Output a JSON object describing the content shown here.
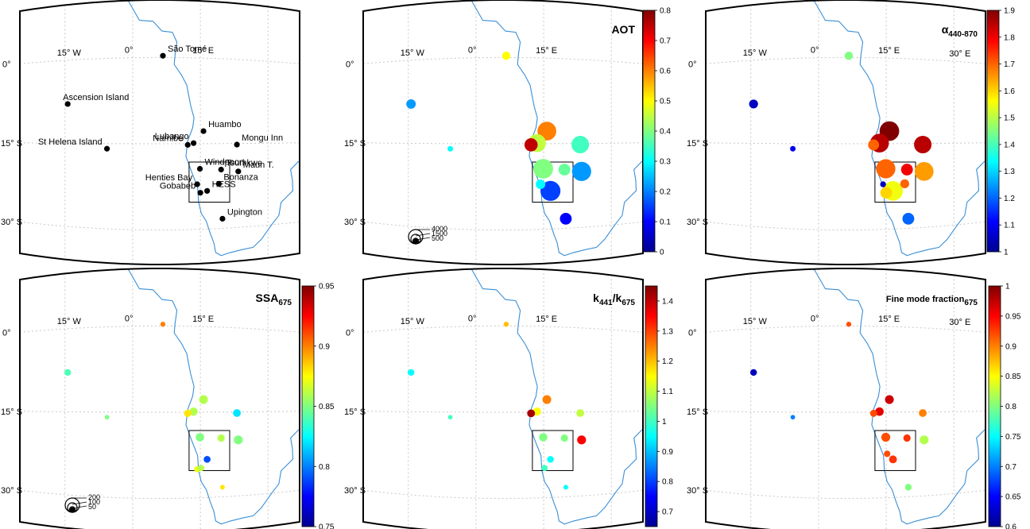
{
  "colors": {
    "coast": "#3a8fd6",
    "grid": "#c8c8c8",
    "frame": "#000000",
    "station": "#000000",
    "jet": [
      "#00008f",
      "#0000ff",
      "#0080ff",
      "#00ffff",
      "#80ff80",
      "#ffff00",
      "#ff8000",
      "#ff0000",
      "#800000"
    ]
  },
  "map_labels": {
    "lon_w15": "15° W",
    "lon_0": "0°",
    "lon_e15": "15° E",
    "lon_e30": "30° E",
    "lat_0": "0°",
    "lat_s15": "15° S",
    "lat_s30": "30° S"
  },
  "stations": [
    {
      "name": "São Tomé",
      "lon": 6.7,
      "lat": 0.3
    },
    {
      "name": "Ascension Island",
      "lon": -14.4,
      "lat": -7.9
    },
    {
      "name": "Huambo",
      "lon": 15.7,
      "lat": -12.8
    },
    {
      "name": "St Helena Island",
      "lon": -5.7,
      "lat": -15.9
    },
    {
      "name": "Lubango",
      "lon": 13.5,
      "lat": -14.9
    },
    {
      "name": "Namibe",
      "lon": 12.2,
      "lat": -15.2
    },
    {
      "name": "Mongu Inn",
      "lon": 23.1,
      "lat": -15.2
    },
    {
      "name": "Windpoort",
      "lon": 14.9,
      "lat": -19.4
    },
    {
      "name": "Tsumkwe",
      "lon": 19.6,
      "lat": -19.6
    },
    {
      "name": "Maun T.",
      "lon": 23.4,
      "lat": -20.0
    },
    {
      "name": "Henties Bay",
      "lon": 14.3,
      "lat": -22.1
    },
    {
      "name": "Bonanza",
      "lon": 19.1,
      "lat": -22.1
    },
    {
      "name": "Gobabeb",
      "lon": 15.0,
      "lat": -23.6
    },
    {
      "name": "HESS",
      "lon": 16.5,
      "lat": -23.3
    },
    {
      "name": "Upington",
      "lon": 19.9,
      "lat": -28.3
    }
  ],
  "size_legends": {
    "aot": [
      "4000",
      "1500",
      "500"
    ],
    "ssa": [
      "200",
      "100",
      "50"
    ]
  },
  "chart_data": [
    {
      "type": "scatter",
      "id": "stations",
      "note_units": "lon/lat degrees",
      "points": []
    },
    {
      "type": "scatter",
      "id": "aot",
      "title": "AOT",
      "colorbar": {
        "min": 0,
        "max": 0.8,
        "ticks": [
          "0",
          "0.1",
          "0.2",
          "0.3",
          "0.4",
          "0.5",
          "0.6",
          "0.7",
          "0.8"
        ]
      },
      "points": [
        {
          "lon": 6.7,
          "lat": 0.3,
          "value": 0.5,
          "n": 150
        },
        {
          "lon": -14.4,
          "lat": -7.9,
          "value": 0.22,
          "n": 250
        },
        {
          "lon": -5.7,
          "lat": -15.9,
          "value": 0.3,
          "n": 20
        },
        {
          "lon": 15.7,
          "lat": -12.8,
          "value": 0.6,
          "n": 1800
        },
        {
          "lon": 12.2,
          "lat": -15.2,
          "value": 0.75,
          "n": 700
        },
        {
          "lon": 13.5,
          "lat": -14.9,
          "value": 0.45,
          "n": 1600
        },
        {
          "lon": 23.1,
          "lat": -15.2,
          "value": 0.35,
          "n": 1500
        },
        {
          "lon": 14.9,
          "lat": -19.4,
          "value": 0.4,
          "n": 2000
        },
        {
          "lon": 19.6,
          "lat": -19.6,
          "value": 0.38,
          "n": 500
        },
        {
          "lon": 23.4,
          "lat": -20.0,
          "value": 0.22,
          "n": 1900
        },
        {
          "lon": 14.3,
          "lat": -22.1,
          "value": 0.3,
          "n": 250
        },
        {
          "lon": 16.5,
          "lat": -23.3,
          "value": 0.15,
          "n": 2100
        },
        {
          "lon": 19.9,
          "lat": -28.3,
          "value": 0.1,
          "n": 500
        }
      ]
    },
    {
      "type": "scatter",
      "id": "alpha",
      "title": "α",
      "title_sub": "440-870",
      "colorbar": {
        "min": 1,
        "max": 1.9,
        "ticks": [
          "1",
          "1.1",
          "1.2",
          "1.3",
          "1.4",
          "1.5",
          "1.6",
          "1.7",
          "1.8",
          "1.9"
        ]
      },
      "points": [
        {
          "lon": 6.7,
          "lat": 0.3,
          "value": 1.45,
          "n": 150
        },
        {
          "lon": -14.4,
          "lat": -7.9,
          "value": 1.05,
          "n": 200
        },
        {
          "lon": -5.7,
          "lat": -15.9,
          "value": 1.1,
          "n": 20
        },
        {
          "lon": 15.7,
          "lat": -12.8,
          "value": 1.9,
          "n": 2000
        },
        {
          "lon": 12.2,
          "lat": -15.2,
          "value": 1.7,
          "n": 400
        },
        {
          "lon": 13.5,
          "lat": -14.9,
          "value": 1.85,
          "n": 1800
        },
        {
          "lon": 23.1,
          "lat": -15.2,
          "value": 1.85,
          "n": 1500
        },
        {
          "lon": 14.9,
          "lat": -19.4,
          "value": 1.7,
          "n": 1900
        },
        {
          "lon": 19.6,
          "lat": -19.6,
          "value": 1.8,
          "n": 500
        },
        {
          "lon": 23.4,
          "lat": -20.0,
          "value": 1.65,
          "n": 1800
        },
        {
          "lon": 14.3,
          "lat": -22.1,
          "value": 1.05,
          "n": 30
        },
        {
          "lon": 19.1,
          "lat": -22.1,
          "value": 1.7,
          "n": 200
        },
        {
          "lon": 16.5,
          "lat": -23.3,
          "value": 1.55,
          "n": 2000
        },
        {
          "lon": 15.0,
          "lat": -23.6,
          "value": 1.6,
          "n": 500
        },
        {
          "lon": 19.9,
          "lat": -28.3,
          "value": 1.2,
          "n": 500
        }
      ]
    },
    {
      "type": "scatter",
      "id": "ssa",
      "title": "SSA",
      "title_sub": "675",
      "colorbar": {
        "min": 0.75,
        "max": 0.95,
        "ticks": [
          "0.75",
          "0.8",
          "0.85",
          "0.9",
          "0.95"
        ]
      },
      "points": [
        {
          "lon": 6.7,
          "lat": 0.3,
          "value": 0.9,
          "n": 10
        },
        {
          "lon": -14.4,
          "lat": -7.9,
          "value": 0.84,
          "n": 60
        },
        {
          "lon": -5.7,
          "lat": -15.9,
          "value": 0.85,
          "n": 3
        },
        {
          "lon": 15.7,
          "lat": -12.8,
          "value": 0.86,
          "n": 190
        },
        {
          "lon": 12.2,
          "lat": -15.2,
          "value": 0.88,
          "n": 90
        },
        {
          "lon": 13.5,
          "lat": -14.9,
          "value": 0.86,
          "n": 150
        },
        {
          "lon": 23.1,
          "lat": -15.2,
          "value": 0.82,
          "n": 120
        },
        {
          "lon": 14.9,
          "lat": -19.4,
          "value": 0.85,
          "n": 160
        },
        {
          "lon": 19.6,
          "lat": -19.6,
          "value": 0.86,
          "n": 90
        },
        {
          "lon": 23.4,
          "lat": -20.0,
          "value": 0.85,
          "n": 200
        },
        {
          "lon": 16.5,
          "lat": -23.3,
          "value": 0.79,
          "n": 70
        },
        {
          "lon": 14.3,
          "lat": -25.0,
          "value": 0.87,
          "n": 40
        },
        {
          "lon": 15.2,
          "lat": -24.8,
          "value": 0.86,
          "n": 40
        },
        {
          "lon": 19.9,
          "lat": -28.3,
          "value": 0.88,
          "n": 5
        }
      ]
    },
    {
      "type": "scatter",
      "id": "k_ratio",
      "title": "k",
      "title_parts": [
        "441",
        "/k",
        "675"
      ],
      "colorbar": {
        "min": 0.65,
        "max": 1.45,
        "ticks": [
          "0.7",
          "0.8",
          "0.9",
          "1",
          "1.1",
          "1.2",
          "1.3",
          "1.4"
        ]
      },
      "points": [
        {
          "lon": 6.7,
          "lat": 0.3,
          "value": 1.2,
          "n": 10
        },
        {
          "lon": -14.4,
          "lat": -7.9,
          "value": 0.95,
          "n": 60
        },
        {
          "lon": -5.7,
          "lat": -15.9,
          "value": 1.0,
          "n": 3
        },
        {
          "lon": 15.7,
          "lat": -12.8,
          "value": 1.25,
          "n": 190
        },
        {
          "lon": 12.2,
          "lat": -15.2,
          "value": 1.42,
          "n": 120
        },
        {
          "lon": 13.5,
          "lat": -14.9,
          "value": 1.15,
          "n": 150
        },
        {
          "lon": 23.1,
          "lat": -15.2,
          "value": 1.1,
          "n": 120
        },
        {
          "lon": 14.9,
          "lat": -19.4,
          "value": 1.05,
          "n": 160
        },
        {
          "lon": 19.6,
          "lat": -19.6,
          "value": 1.05,
          "n": 90
        },
        {
          "lon": 23.4,
          "lat": -20.0,
          "value": 1.35,
          "n": 200
        },
        {
          "lon": 16.5,
          "lat": -23.3,
          "value": 0.95,
          "n": 60
        },
        {
          "lon": 15.2,
          "lat": -24.8,
          "value": 1.0,
          "n": 40
        },
        {
          "lon": 19.9,
          "lat": -28.3,
          "value": 0.95,
          "n": 5
        }
      ]
    },
    {
      "type": "scatter",
      "id": "fmf",
      "title": "Fine mode fraction",
      "title_sub": "675",
      "colorbar": {
        "min": 0.6,
        "max": 1,
        "ticks": [
          "0.6",
          "0.65",
          "0.7",
          "0.75",
          "0.8",
          "0.85",
          "0.9",
          "0.95",
          "1"
        ]
      },
      "points": [
        {
          "lon": 6.7,
          "lat": 0.3,
          "value": 0.92,
          "n": 10
        },
        {
          "lon": -14.4,
          "lat": -7.9,
          "value": 0.62,
          "n": 60
        },
        {
          "lon": -5.7,
          "lat": -15.9,
          "value": 0.7,
          "n": 3
        },
        {
          "lon": 15.7,
          "lat": -12.8,
          "value": 0.97,
          "n": 190
        },
        {
          "lon": 12.2,
          "lat": -15.2,
          "value": 0.92,
          "n": 80
        },
        {
          "lon": 13.5,
          "lat": -14.9,
          "value": 0.96,
          "n": 170
        },
        {
          "lon": 23.1,
          "lat": -15.2,
          "value": 0.9,
          "n": 120
        },
        {
          "lon": 14.9,
          "lat": -19.4,
          "value": 0.92,
          "n": 200
        },
        {
          "lon": 19.6,
          "lat": -19.6,
          "value": 0.93,
          "n": 90
        },
        {
          "lon": 23.4,
          "lat": -20.0,
          "value": 0.82,
          "n": 200
        },
        {
          "lon": 16.5,
          "lat": -23.3,
          "value": 0.93,
          "n": 120
        },
        {
          "lon": 15.2,
          "lat": -22.3,
          "value": 0.92,
          "n": 50
        },
        {
          "lon": 19.9,
          "lat": -28.3,
          "value": 0.8,
          "n": 60
        }
      ]
    }
  ]
}
